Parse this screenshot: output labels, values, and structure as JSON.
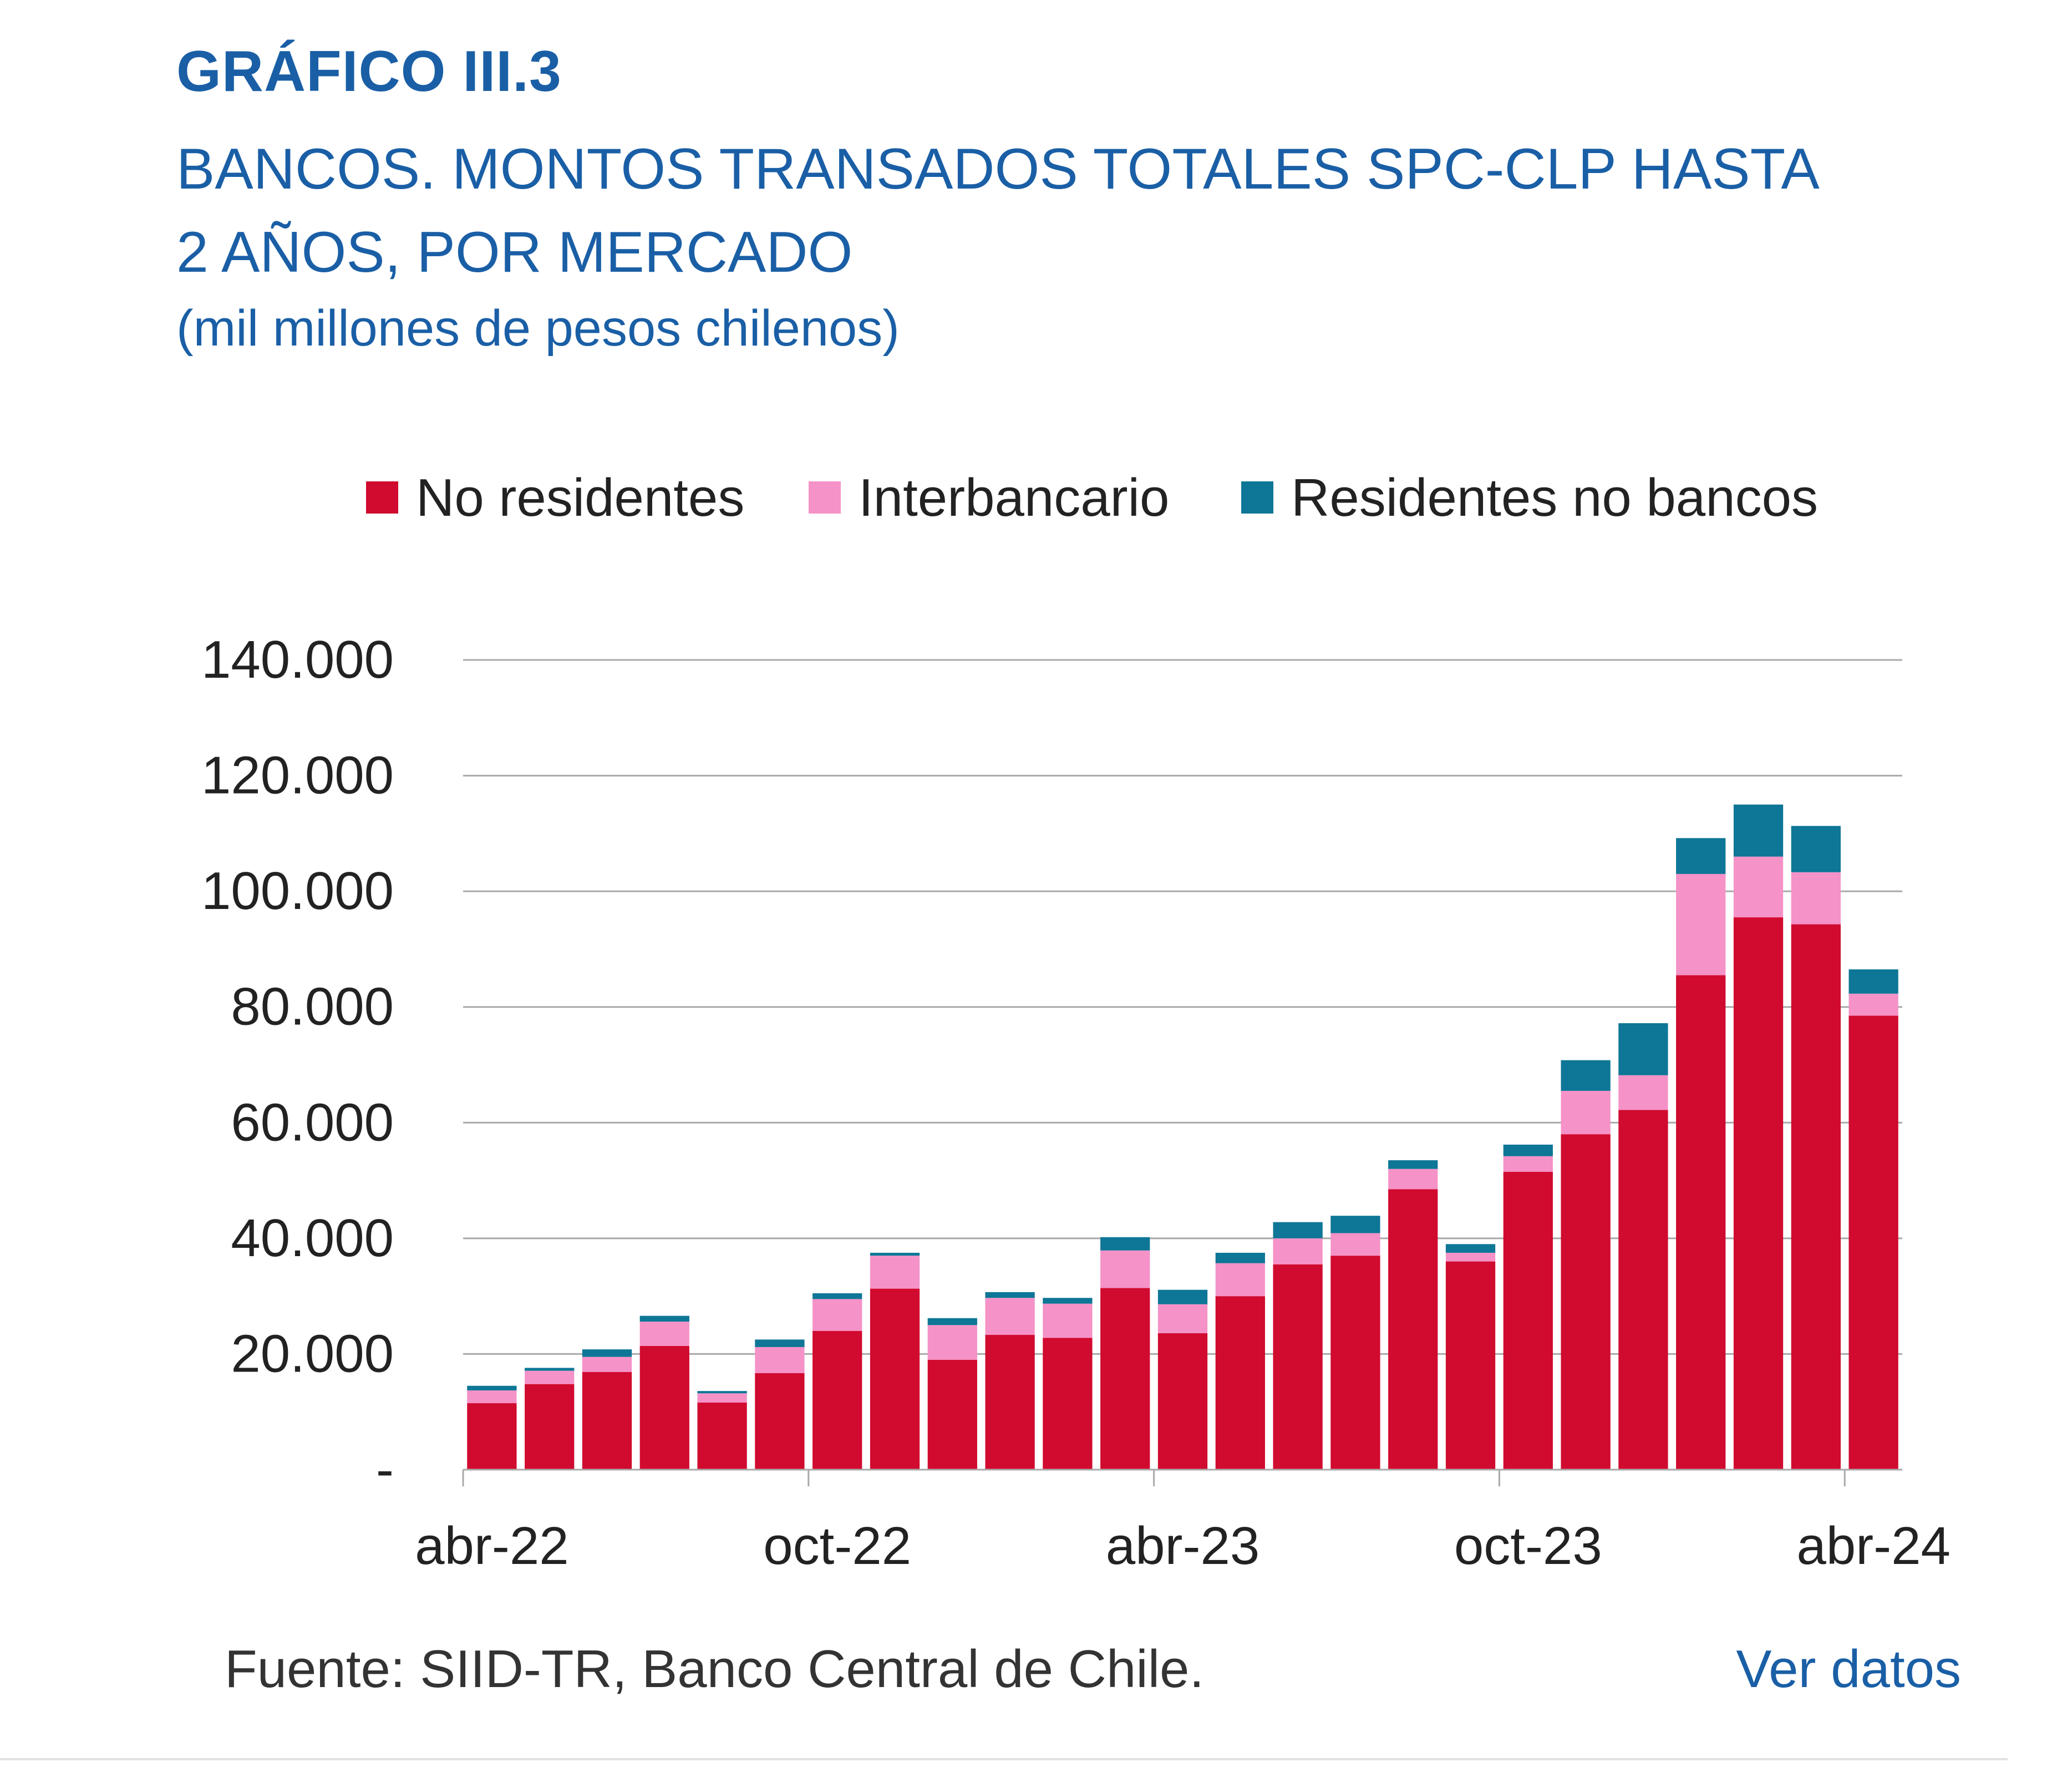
{
  "header": {
    "title": "GRÁFICO III.3",
    "subtitle": "BANCOS. MONTOS TRANSADOS TOTALES SPC-CLP HASTA 2 AÑOS, POR MERCADO",
    "units": "(mil millones de pesos chilenos)"
  },
  "footer": {
    "source": "Fuente: SIID-TR, Banco Central de Chile.",
    "link": "Ver datos"
  },
  "chart_data": {
    "type": "bar",
    "stacked": true,
    "title": "BANCOS. MONTOS TRANSADOS TOTALES SPC-CLP HASTA 2 AÑOS, POR MERCADO",
    "ylabel": "(mil millones de pesos chilenos)",
    "ylim": [
      0,
      140000
    ],
    "yticks": [
      0,
      20000,
      40000,
      60000,
      80000,
      100000,
      120000,
      140000
    ],
    "ytick_labels": [
      "-",
      "20.000",
      "40.000",
      "60.000",
      "80.000",
      "100.000",
      "120.000",
      "140.000"
    ],
    "xtick_labels": [
      {
        "label": "abr-22",
        "index": 0
      },
      {
        "label": "oct-22",
        "index": 6
      },
      {
        "label": "abr-23",
        "index": 12
      },
      {
        "label": "oct-23",
        "index": 18
      },
      {
        "label": "abr-24",
        "index": 24
      }
    ],
    "categories": [
      "abr-22",
      "may-22",
      "jun-22",
      "jul-22",
      "ago-22",
      "sep-22",
      "oct-22",
      "nov-22",
      "dic-22",
      "ene-23",
      "feb-23",
      "mar-23",
      "abr-23",
      "may-23",
      "jun-23",
      "jul-23",
      "ago-23",
      "sep-23",
      "oct-23",
      "nov-23",
      "dic-23",
      "ene-24",
      "feb-24",
      "mar-24",
      "abr-24"
    ],
    "legend_position": "top",
    "grid": true,
    "series": [
      {
        "name": "No residentes",
        "color": "#d10a2f",
        "values": [
          11500,
          14800,
          16900,
          21400,
          11600,
          16700,
          24000,
          31300,
          19000,
          23300,
          22800,
          31400,
          23600,
          30000,
          35500,
          37000,
          48500,
          36000,
          51500,
          58000,
          62200,
          85500,
          95500,
          94300,
          78500
        ]
      },
      {
        "name": "Interbancario",
        "color": "#f592c8",
        "values": [
          2200,
          2300,
          2600,
          4200,
          1600,
          4500,
          5500,
          5700,
          6000,
          6400,
          5900,
          6500,
          5000,
          5700,
          4500,
          3900,
          3500,
          1500,
          2700,
          7500,
          6000,
          17500,
          10500,
          9000,
          3800
        ]
      },
      {
        "name": "Residentes no bancos",
        "color": "#0e7696",
        "values": [
          800,
          500,
          1300,
          1000,
          400,
          1300,
          1000,
          500,
          1200,
          1000,
          1000,
          2300,
          2500,
          1800,
          2800,
          3000,
          1500,
          1500,
          2000,
          5300,
          9000,
          6200,
          9000,
          8000,
          4200
        ]
      }
    ]
  }
}
